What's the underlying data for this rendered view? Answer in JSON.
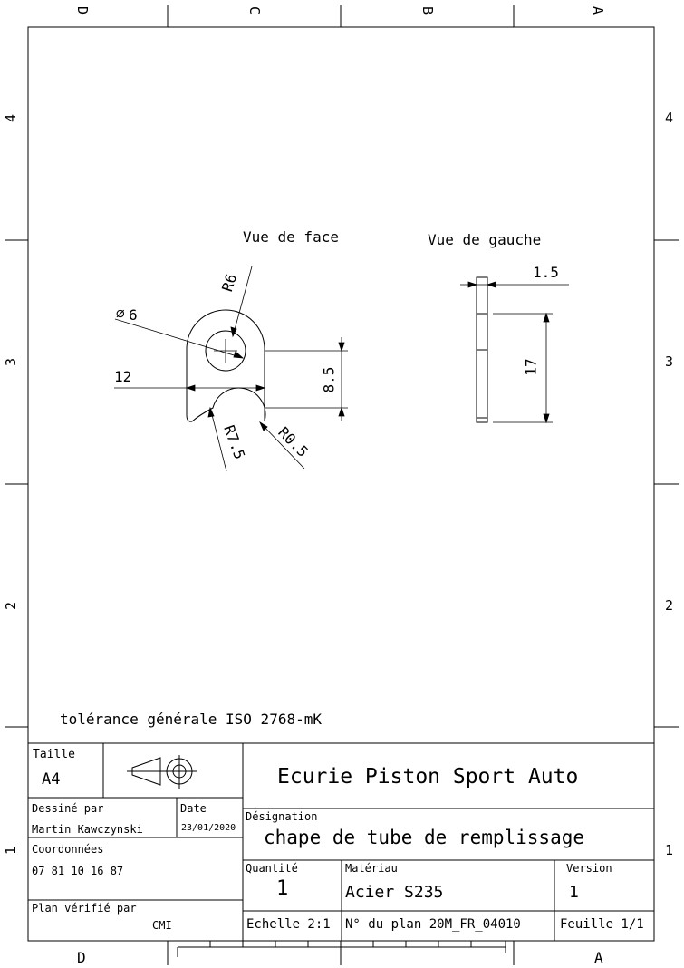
{
  "zones": {
    "top": [
      "D",
      "C",
      "B",
      "A"
    ],
    "bottom": [
      "D",
      "A"
    ],
    "left": [
      "4",
      "3",
      "2",
      "1"
    ],
    "right": [
      "4",
      "3",
      "2",
      "1"
    ]
  },
  "views": {
    "front": "Vue de face",
    "left": "Vue de gauche"
  },
  "dimensions": {
    "r6": "R6",
    "d6": "6",
    "d12": "12",
    "d8_5": "8.5",
    "r7_5": "R7.5",
    "r0_5": "R0.5",
    "d1_5": "1.5",
    "d17": "17"
  },
  "tolerance": "tolérance générale ISO 2768-mK",
  "title_block": {
    "size_label": "Taille",
    "size_value": "A4",
    "company": "Ecurie Piston Sport Auto",
    "drawn_by_label": "Dessiné par",
    "drawn_by_value": "Martin Kawczynski",
    "date_label": "Date",
    "date_value": "23/01/2020",
    "designation_label": "Désignation",
    "designation_value": "chape de tube de remplissage",
    "coords_label": "Coordonnées",
    "coords_value": "07 81 10 16 87",
    "verified_label": "Plan vérifié par",
    "verified_value": "CMI",
    "quantity_label": "Quantité",
    "quantity_value": "1",
    "material_label": "Matériau",
    "material_value": "Acier S235",
    "version_label": "Version",
    "version_value": "1",
    "scale": "Echelle 2:1",
    "plan_no": "N° du plan  20M_FR_04010",
    "sheet": "Feuille 1/1"
  }
}
